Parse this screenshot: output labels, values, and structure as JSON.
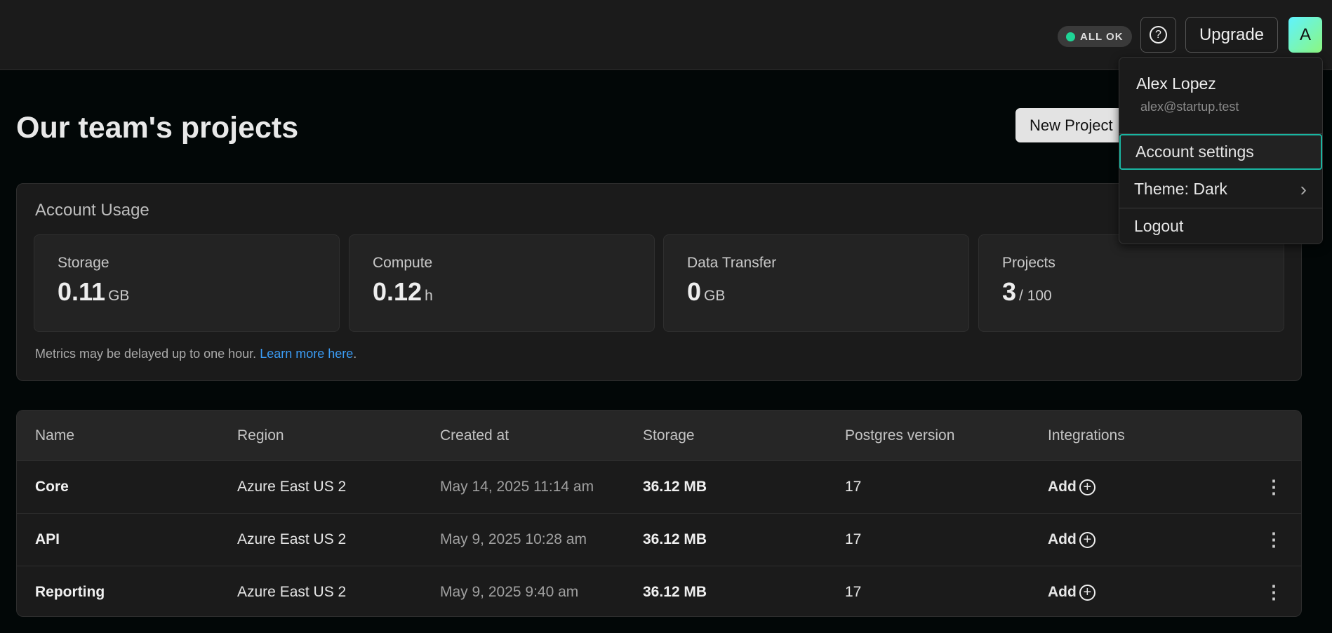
{
  "header": {
    "status": "ALL OK",
    "status_color": "#1fd596",
    "help_icon": "question-circle-icon",
    "upgrade": "Upgrade",
    "avatar_initial": "A"
  },
  "page": {
    "title": "Our team's projects",
    "new_project": "New Project"
  },
  "usage": {
    "title": "Account Usage",
    "stats": [
      {
        "label": "Storage",
        "value": "0.11",
        "unit": "GB"
      },
      {
        "label": "Compute",
        "value": "0.12",
        "unit": "h"
      },
      {
        "label": "Data Transfer",
        "value": "0",
        "unit": "GB"
      },
      {
        "label": "Projects",
        "value": "3",
        "unit": "/ 100"
      }
    ],
    "note": "Metrics may be delayed up to one hour.",
    "link": "Learn more here",
    "link_color": "#3b9cf5"
  },
  "table": {
    "columns": [
      "Name",
      "Region",
      "Created at",
      "Storage",
      "Postgres version",
      "Integrations"
    ],
    "rows": [
      {
        "name": "Core",
        "region": "Azure East US 2",
        "created": "May 14, 2025 11:14 am",
        "storage": "36.12 MB",
        "pg": "17",
        "integration": "Add"
      },
      {
        "name": "API",
        "region": "Azure East US 2",
        "created": "May 9, 2025 10:28 am",
        "storage": "36.12 MB",
        "pg": "17",
        "integration": "Add"
      },
      {
        "name": "Reporting",
        "region": "Azure East US 2",
        "created": "May 9, 2025 9:40 am",
        "storage": "36.12 MB",
        "pg": "17",
        "integration": "Add"
      }
    ]
  },
  "menu": {
    "name": "Alex Lopez",
    "email": "alex@startup.test",
    "items": [
      "Account settings",
      "Theme: Dark",
      "Logout"
    ],
    "accent": "#19b5a1"
  }
}
